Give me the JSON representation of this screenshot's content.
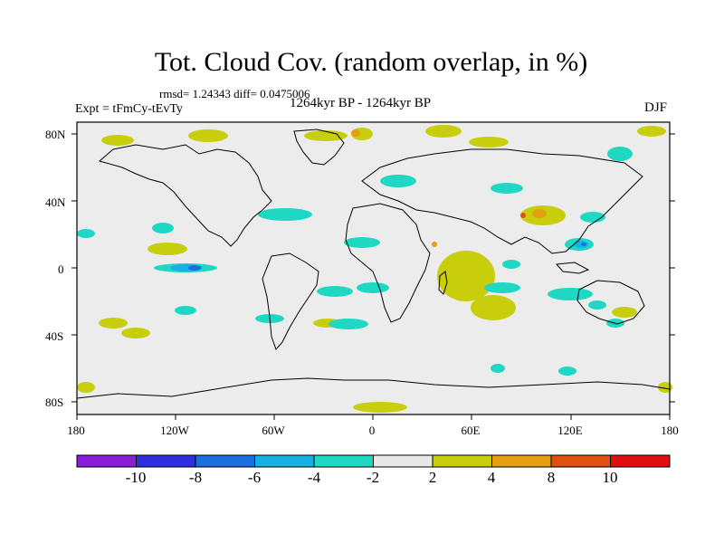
{
  "title": "Tot. Cloud Cov. (random overlap, in %)",
  "stats": "rmsd= 1.24343 diff= 0.0475006",
  "experiment": "Expt = tFmCy-tEvTy",
  "period": "1264kyr BP - 1264kyr BP",
  "season": "DJF",
  "latitude_labels": [
    "80N",
    "40N",
    "0",
    "40S",
    "80S"
  ],
  "latitude_values": [
    80,
    40,
    0,
    -40,
    -80
  ],
  "longitude_labels": [
    "180",
    "120W",
    "60W",
    "0",
    "60E",
    "120E",
    "180"
  ],
  "longitude_values": [
    -180,
    -120,
    -60,
    0,
    60,
    120,
    180
  ],
  "colorbar": {
    "labels": [
      "-10",
      "-8",
      "-6",
      "-4",
      "-2",
      "2",
      "4",
      "8",
      "10"
    ],
    "colors": [
      "#8a1ed8",
      "#2f2fe0",
      "#1a6fe0",
      "#15b0e4",
      "#1ed8c4",
      "#e8e8e8",
      "#c8cd0c",
      "#e4a010",
      "#e05010",
      "#e01010"
    ]
  },
  "colors": {
    "ocean": "#ececec",
    "positive_2_4": "#c8cd0c",
    "positive_4_8": "#e4a010",
    "positive_8_10": "#e05010",
    "negative_2_4": "#1ed8c4",
    "negative_4_6": "#15b0e4",
    "negative_6_8": "#1a6fe0"
  }
}
